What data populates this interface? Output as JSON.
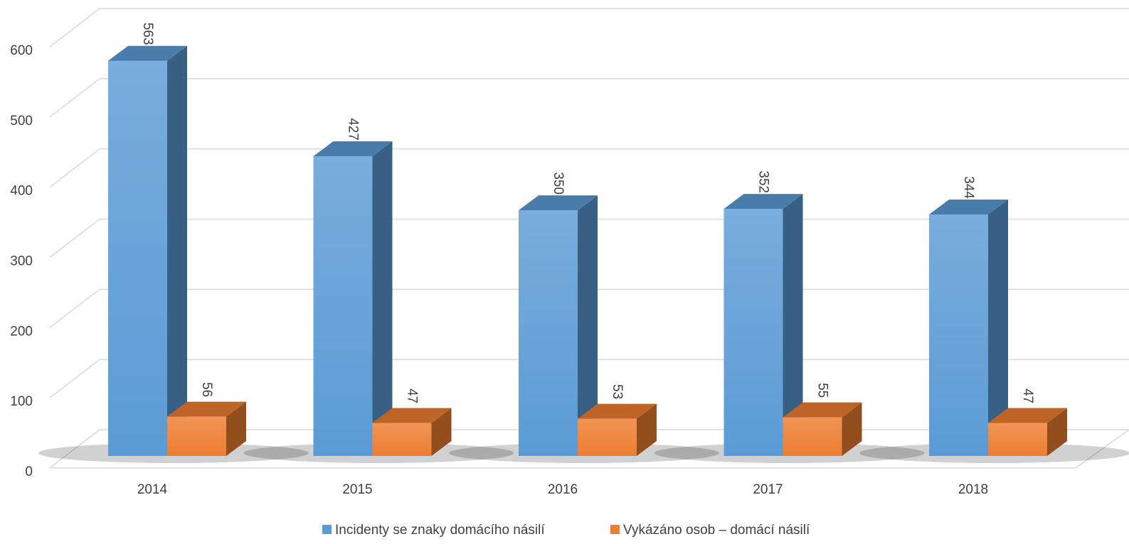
{
  "chart_data": {
    "type": "bar3d",
    "categories": [
      "2014",
      "2015",
      "2016",
      "2017",
      "2018"
    ],
    "series": [
      {
        "name": "Incidenty se znaky domácího násilí",
        "color": "#5b9bd5",
        "values": [
          563,
          427,
          350,
          352,
          344
        ]
      },
      {
        "name": "Vykázáno osob – domácí násilí",
        "color": "#ed7d31",
        "values": [
          56,
          47,
          53,
          55,
          47
        ]
      }
    ],
    "ylim": [
      0,
      600
    ],
    "yticks": [
      0,
      100,
      200,
      300,
      400,
      500,
      600
    ],
    "grid": true,
    "legend": "bottom"
  }
}
